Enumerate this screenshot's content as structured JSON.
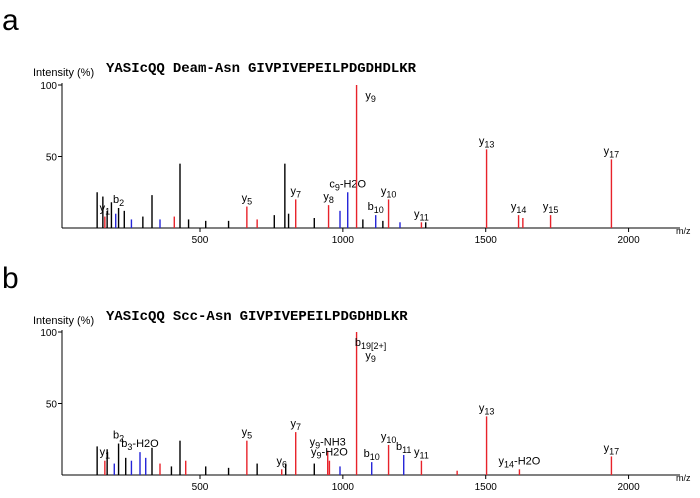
{
  "chart_data": [
    {
      "type": "spectrum",
      "panel": "a",
      "y_label": "Intensity (%)",
      "x_label": "m/z",
      "sequence_before": "YASIcQQ",
      "modification": "Deam-Asn",
      "sequence_after": "GIVPIVEPEILPDGDHDLKR",
      "xlim": [
        17,
        2180
      ],
      "ylim": [
        0,
        100
      ],
      "xticks": [
        500,
        1000,
        1500,
        2000
      ],
      "yticks": [
        50,
        100
      ],
      "x": [
        140,
        160,
        167,
        175,
        190,
        205,
        215,
        235,
        260,
        300,
        332,
        360,
        410,
        430,
        460,
        520,
        600,
        664,
        700,
        760,
        797,
        810,
        835,
        900,
        950,
        990,
        1017,
        1048,
        1070,
        1115,
        1140,
        1160,
        1200,
        1275,
        1290,
        1503,
        1615,
        1630,
        1727,
        1940
      ],
      "values": [
        25,
        22,
        8,
        12,
        18,
        10,
        14,
        12,
        6,
        8,
        23,
        6,
        8,
        45,
        6,
        5,
        5,
        15,
        6,
        9,
        45,
        10,
        20,
        7,
        16,
        12,
        25,
        100,
        6,
        9,
        5,
        20,
        4,
        4,
        4,
        55,
        9,
        7,
        9,
        48
      ],
      "colors": [
        "#000000",
        "#000000",
        "#e8222a",
        "#000000",
        "#000000",
        "#2424d8",
        "#000000",
        "#000000",
        "#2424d8",
        "#000000",
        "#000000",
        "#2424d8",
        "#e8222a",
        "#000000",
        "#000000",
        "#000000",
        "#000000",
        "#e8222a",
        "#e8222a",
        "#000000",
        "#000000",
        "#000000",
        "#e8222a",
        "#000000",
        "#e8222a",
        "#2424d8",
        "#2424d8",
        "#e8222a",
        "#000000",
        "#2424d8",
        "#000000",
        "#e8222a",
        "#2424d8",
        "#e8222a",
        "#000000",
        "#e8222a",
        "#e8222a",
        "#e8222a",
        "#e8222a",
        "#e8222a"
      ],
      "labels": [
        null,
        null,
        [
          "y1"
        ],
        null,
        null,
        null,
        [
          "b2"
        ],
        null,
        null,
        null,
        null,
        null,
        null,
        null,
        null,
        null,
        null,
        [
          "y5"
        ],
        null,
        null,
        null,
        null,
        [
          "y7"
        ],
        null,
        [
          "y8"
        ],
        null,
        [
          "c9-H2O"
        ],
        [
          "y9"
        ],
        null,
        [
          "b10"
        ],
        null,
        [
          "y10"
        ],
        null,
        [
          "y11"
        ],
        null,
        [
          "y13"
        ],
        [
          "y14"
        ],
        null,
        [
          "y15"
        ],
        [
          "y17"
        ]
      ]
    },
    {
      "type": "spectrum",
      "panel": "b",
      "y_label": "Intensity (%)",
      "x_label": "m/z",
      "sequence_before": "YASIcQQ",
      "modification": "Scc-Asn",
      "sequence_after": "GIVPIVEPEILPDGDHDLKR",
      "xlim": [
        17,
        2180
      ],
      "ylim": [
        0,
        100
      ],
      "xticks": [
        500,
        1000,
        1500,
        2000
      ],
      "yticks": [
        50,
        100
      ],
      "x": [
        140,
        167,
        175,
        200,
        215,
        240,
        260,
        290,
        310,
        332,
        360,
        400,
        430,
        450,
        520,
        600,
        664,
        700,
        786,
        800,
        835,
        900,
        947,
        953,
        990,
        1048,
        1101,
        1160,
        1213,
        1275,
        1400,
        1503,
        1618,
        1940
      ],
      "values": [
        20,
        10,
        18,
        8,
        22,
        12,
        10,
        16,
        12,
        19,
        8,
        6,
        24,
        10,
        6,
        5,
        24,
        8,
        4,
        8,
        30,
        8,
        17,
        10,
        6,
        100,
        9,
        21,
        14,
        10,
        3,
        41,
        4,
        13
      ],
      "colors": [
        "#000000",
        "#e8222a",
        "#000000",
        "#2424d8",
        "#000000",
        "#000000",
        "#2424d8",
        "#2424d8",
        "#2424d8",
        "#000000",
        "#e8222a",
        "#000000",
        "#000000",
        "#e8222a",
        "#000000",
        "#000000",
        "#e8222a",
        "#000000",
        "#e8222a",
        "#000000",
        "#e8222a",
        "#000000",
        "#e8222a",
        "#e8222a",
        "#2424d8",
        "#e8222a",
        "#2424d8",
        "#e8222a",
        "#2424d8",
        "#e8222a",
        "#e8222a",
        "#e8222a",
        "#e8222a",
        "#e8222a"
      ],
      "labels": [
        null,
        [
          "y1"
        ],
        null,
        null,
        [
          "b2"
        ],
        null,
        null,
        [
          "b3-H2O"
        ],
        null,
        null,
        null,
        null,
        null,
        null,
        null,
        null,
        [
          "y5"
        ],
        null,
        [
          "y6"
        ],
        null,
        [
          "y7"
        ],
        null,
        [
          "y9-NH3"
        ],
        [
          "y9-H2O"
        ],
        null,
        [
          "b19[2+]",
          "y9"
        ],
        [
          "b10"
        ],
        [
          "y10"
        ],
        [
          "b11"
        ],
        [
          "y11"
        ],
        null,
        [
          "y13"
        ],
        [
          "y14-H2O"
        ],
        [
          "y17"
        ]
      ]
    }
  ]
}
